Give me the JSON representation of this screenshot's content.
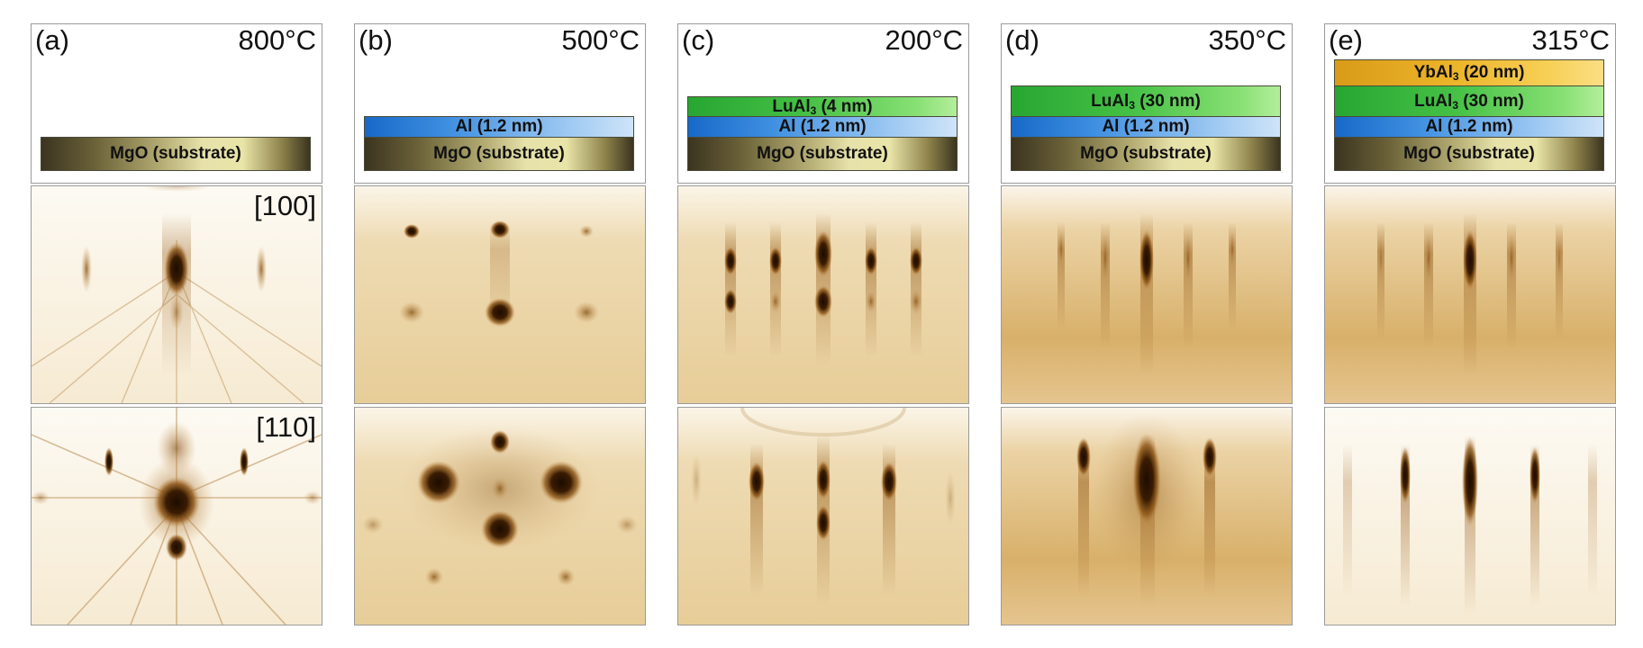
{
  "figure": {
    "panels": [
      {
        "label": "(a)",
        "temperature": "800°C",
        "layers": [
          {
            "main": "MgO (substrate)"
          }
        ],
        "direction_100": "[100]",
        "direction_110": "[110]"
      },
      {
        "label": "(b)",
        "temperature": "500°C",
        "layers": [
          {
            "main": "Al (1.2 nm)"
          },
          {
            "main": "MgO (substrate)"
          }
        ]
      },
      {
        "label": "(c)",
        "temperature": "200°C",
        "layers": [
          {
            "pre": "LuAl",
            "sub": "3",
            "post": " (4 nm)"
          },
          {
            "main": "Al (1.2 nm)"
          },
          {
            "main": "MgO (substrate)"
          }
        ]
      },
      {
        "label": "(d)",
        "temperature": "350°C",
        "layers": [
          {
            "pre": "LuAl",
            "sub": "3",
            "post": " (30 nm)"
          },
          {
            "main": "Al (1.2 nm)"
          },
          {
            "main": "MgO (substrate)"
          }
        ]
      },
      {
        "label": "(e)",
        "temperature": "315°C",
        "layers": [
          {
            "pre": "YbAl",
            "sub": "3",
            "post": " (20 nm)"
          },
          {
            "pre": "LuAl",
            "sub": "3",
            "post": " (30 nm)"
          },
          {
            "main": "Al (1.2 nm)"
          },
          {
            "main": "MgO (substrate)"
          }
        ]
      }
    ],
    "colors": {
      "rheed_background": "#f3e3c2",
      "rheed_dark": "#2a1400",
      "rheed_mid": "#a66b1a",
      "panel_border": "#9a9a9a"
    }
  }
}
